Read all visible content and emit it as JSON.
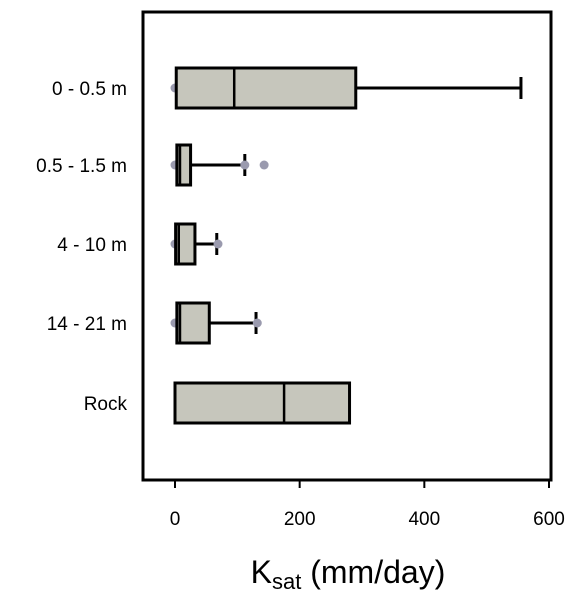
{
  "chart_data": {
    "type": "boxplot",
    "orientation": "horizontal",
    "xlabel": {
      "main": "K",
      "subscript": "sat",
      "rest": " (mm/day)"
    },
    "xlim": [
      -25,
      600
    ],
    "xticks": [
      0,
      200,
      400,
      600
    ],
    "grid": false,
    "legend": "none",
    "series": [
      {
        "label": "0 - 0.5 m",
        "whisker_low": 0,
        "q1": 2,
        "median": 95,
        "q3": 290,
        "whisker_high": 555,
        "outliers": [
          0
        ]
      },
      {
        "label": "0.5 - 1.5 m",
        "whisker_low": 0,
        "q1": 3,
        "median": 8,
        "q3": 25,
        "whisker_high": 112,
        "outliers": [
          0,
          112,
          143
        ]
      },
      {
        "label": "4 - 10 m",
        "whisker_low": 0,
        "q1": 1,
        "median": 6,
        "q3": 32,
        "whisker_high": 67,
        "outliers": [
          0,
          69
        ]
      },
      {
        "label": "14 - 21 m",
        "whisker_low": 0,
        "q1": 3,
        "median": 8,
        "q3": 55,
        "whisker_high": 130,
        "outliers": [
          0,
          132
        ]
      },
      {
        "label": "Rock",
        "whisker_low": 0,
        "q1": 0,
        "median": 175,
        "q3": 280,
        "whisker_high": 280,
        "outliers": []
      }
    ],
    "colors": {
      "box_fill": "#c6c6bc",
      "stroke": "#000000",
      "outlier": "#9a9aae",
      "background": "#ffffff"
    }
  }
}
